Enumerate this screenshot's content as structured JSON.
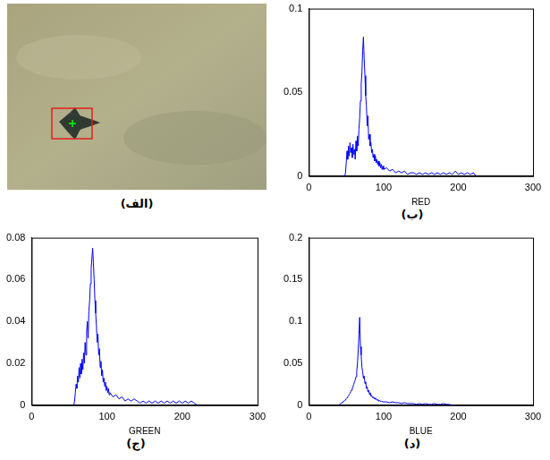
{
  "image_panel": {
    "label": "(الف)"
  },
  "chart_data": [
    {
      "type": "line",
      "panel_label": "(ب)",
      "xlabel": "RED",
      "color": "#0000ff",
      "grid": false,
      "legend": false,
      "xlim": [
        0,
        300
      ],
      "xticks": [
        0,
        100,
        200,
        300
      ],
      "ylim": [
        0,
        0.1
      ],
      "yticks": [
        0,
        0.05,
        0.1
      ],
      "x": [
        48,
        49,
        50,
        51,
        52,
        53,
        54,
        55,
        56,
        57,
        58,
        59,
        60,
        61,
        62,
        63,
        64,
        65,
        66,
        67,
        68,
        69,
        70,
        71,
        72,
        73,
        74,
        75,
        76,
        77,
        78,
        79,
        80,
        81,
        82,
        83,
        84,
        85,
        86,
        87,
        88,
        89,
        90,
        91,
        92,
        93,
        94,
        95,
        96,
        97,
        98,
        99,
        100,
        104,
        108,
        112,
        116,
        120,
        124,
        128,
        132,
        136,
        140,
        144,
        148,
        152,
        156,
        160,
        164,
        168,
        172,
        176,
        180,
        184,
        188,
        192,
        196,
        200,
        204,
        208,
        212,
        216,
        220,
        224
      ],
      "values": [
        0,
        0.002,
        0.008,
        0.015,
        0.01,
        0.018,
        0.012,
        0.02,
        0.014,
        0.017,
        0.011,
        0.019,
        0.013,
        0.016,
        0.01,
        0.021,
        0.015,
        0.024,
        0.018,
        0.028,
        0.035,
        0.045,
        0.055,
        0.062,
        0.075,
        0.083,
        0.07,
        0.06,
        0.048,
        0.042,
        0.03,
        0.036,
        0.022,
        0.025,
        0.018,
        0.02,
        0.014,
        0.016,
        0.011,
        0.013,
        0.009,
        0.012,
        0.008,
        0.01,
        0.007,
        0.009,
        0.006,
        0.008,
        0.005,
        0.007,
        0.004,
        0.006,
        0.004,
        0.005,
        0.003,
        0.004,
        0.002,
        0.003,
        0.002,
        0.003,
        0.001,
        0.002,
        0.002,
        0.001,
        0.002,
        0.001,
        0.002,
        0.001,
        0.002,
        0.001,
        0.002,
        0.001,
        0.002,
        0.001,
        0.002,
        0.001,
        0.003,
        0.001,
        0.002,
        0.001,
        0.002,
        0.001,
        0.002,
        0
      ]
    },
    {
      "type": "line",
      "panel_label": "(ج)",
      "xlabel": "GREEN",
      "color": "#0000ff",
      "grid": false,
      "legend": false,
      "xlim": [
        0,
        300
      ],
      "xticks": [
        0,
        100,
        200,
        300
      ],
      "ylim": [
        0,
        0.08
      ],
      "yticks": [
        0,
        0.02,
        0.04,
        0.06,
        0.08
      ],
      "x": [
        56,
        57,
        58,
        59,
        60,
        61,
        62,
        63,
        64,
        65,
        66,
        67,
        68,
        69,
        70,
        71,
        72,
        73,
        74,
        75,
        76,
        77,
        78,
        79,
        80,
        81,
        82,
        83,
        84,
        85,
        86,
        87,
        88,
        89,
        90,
        91,
        92,
        93,
        94,
        95,
        96,
        97,
        98,
        99,
        100,
        101,
        102,
        103,
        104,
        108,
        112,
        116,
        120,
        124,
        128,
        132,
        136,
        140,
        144,
        148,
        152,
        156,
        160,
        164,
        168,
        172,
        176,
        180,
        184,
        188,
        192,
        196,
        200,
        204,
        208,
        212,
        216,
        220
      ],
      "values": [
        0,
        0.002,
        0.006,
        0.01,
        0.008,
        0.014,
        0.011,
        0.018,
        0.013,
        0.02,
        0.015,
        0.022,
        0.017,
        0.025,
        0.02,
        0.03,
        0.024,
        0.035,
        0.04,
        0.032,
        0.045,
        0.05,
        0.058,
        0.065,
        0.07,
        0.075,
        0.068,
        0.06,
        0.05,
        0.044,
        0.038,
        0.03,
        0.034,
        0.024,
        0.027,
        0.018,
        0.021,
        0.014,
        0.017,
        0.011,
        0.013,
        0.009,
        0.011,
        0.007,
        0.009,
        0.006,
        0.008,
        0.005,
        0.006,
        0.004,
        0.005,
        0.003,
        0.004,
        0.002,
        0.003,
        0.002,
        0.003,
        0.002,
        0.001,
        0.002,
        0.001,
        0.002,
        0.001,
        0.002,
        0.001,
        0.002,
        0.001,
        0.002,
        0.001,
        0.002,
        0.001,
        0.002,
        0.001,
        0.002,
        0.001,
        0.002,
        0.001,
        0
      ]
    },
    {
      "type": "line",
      "panel_label": "(د)",
      "xlabel": "BLUE",
      "color": "#0000ff",
      "grid": false,
      "legend": false,
      "xlim": [
        0,
        300
      ],
      "xticks": [
        0,
        100,
        200,
        300
      ],
      "ylim": [
        0,
        0.2
      ],
      "yticks": [
        0,
        0.05,
        0.1,
        0.15,
        0.2
      ],
      "x": [
        40,
        41,
        42,
        43,
        44,
        45,
        46,
        47,
        48,
        49,
        50,
        51,
        52,
        53,
        54,
        55,
        56,
        57,
        58,
        59,
        60,
        61,
        62,
        63,
        64,
        65,
        66,
        67,
        68,
        69,
        70,
        71,
        72,
        73,
        74,
        75,
        76,
        77,
        78,
        79,
        80,
        81,
        82,
        83,
        84,
        85,
        86,
        87,
        88,
        89,
        90,
        91,
        92,
        93,
        94,
        95,
        96,
        97,
        98,
        99,
        100,
        104,
        108,
        112,
        116,
        120,
        124,
        128,
        132,
        136,
        140,
        144,
        148,
        152,
        156,
        160,
        164,
        168,
        172,
        176,
        180,
        184,
        188,
        192
      ],
      "values": [
        0,
        0.001,
        0.002,
        0.002,
        0.003,
        0.004,
        0.004,
        0.005,
        0.006,
        0.006,
        0.008,
        0.009,
        0.01,
        0.011,
        0.013,
        0.014,
        0.016,
        0.018,
        0.02,
        0.022,
        0.025,
        0.028,
        0.03,
        0.034,
        0.04,
        0.05,
        0.065,
        0.085,
        0.105,
        0.07,
        0.06,
        0.045,
        0.04,
        0.032,
        0.035,
        0.026,
        0.028,
        0.02,
        0.022,
        0.016,
        0.018,
        0.013,
        0.015,
        0.011,
        0.012,
        0.009,
        0.01,
        0.008,
        0.009,
        0.007,
        0.008,
        0.006,
        0.007,
        0.005,
        0.006,
        0.005,
        0.005,
        0.004,
        0.005,
        0.004,
        0.004,
        0.004,
        0.003,
        0.004,
        0.003,
        0.003,
        0.002,
        0.003,
        0.002,
        0.002,
        0.002,
        0.001,
        0.002,
        0.001,
        0.002,
        0.001,
        0.001,
        0.002,
        0.001,
        0.001,
        0.002,
        0.001,
        0.001,
        0
      ]
    }
  ]
}
